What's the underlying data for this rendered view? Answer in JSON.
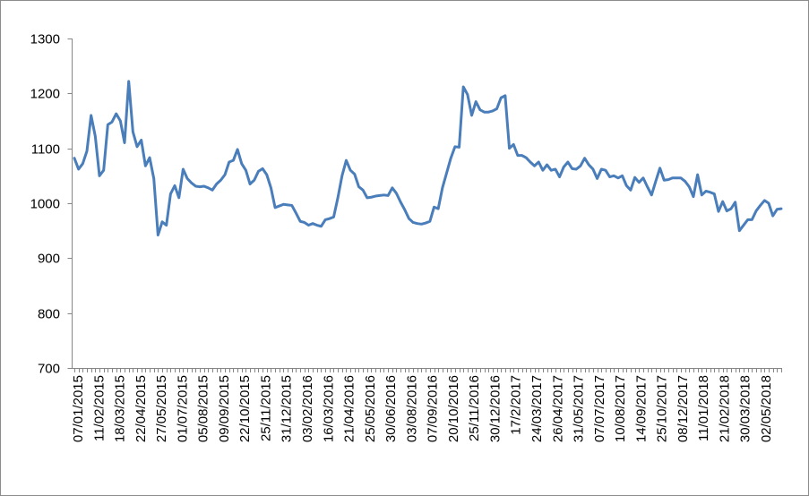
{
  "chart_data": {
    "type": "line",
    "title": "",
    "xlabel": "",
    "ylabel": "",
    "ylim": [
      700,
      1300
    ],
    "y_ticks": [
      700,
      800,
      900,
      1000,
      1100,
      1200,
      1300
    ],
    "x_tick_labels": [
      "07/01/2015",
      "11/02/2015",
      "18/03/2015",
      "22/04/2015",
      "27/05/2015",
      "01/07/2015",
      "05/08/2015",
      "09/09/2015",
      "22/10/2015",
      "25/11/2015",
      "31/12/2015",
      "03/02/2016",
      "16/03/2016",
      "21/04/2016",
      "25/05/2016",
      "30/06/2016",
      "03/08/2016",
      "07/09/2016",
      "20/10/2016",
      "25/11/2016",
      "30/12/2016",
      "17/2/2017",
      "24/03/2017",
      "26/04/2017",
      "31/05/2017",
      "07/07/2017",
      "10/08/2017",
      "14/09/2017",
      "25/10/2017",
      "08/12/2017",
      "11/01/2018",
      "21/02/2018",
      "30/03/2018",
      "02/05/2018"
    ],
    "grid": false,
    "legend": "none",
    "line_color": "#4a7ebb",
    "series": [
      {
        "values": [
          1082,
          1062,
          1072,
          1095,
          1160,
          1122,
          1050,
          1060,
          1143,
          1148,
          1163,
          1150,
          1110,
          1222,
          1130,
          1103,
          1115,
          1068,
          1083,
          1045,
          942,
          966,
          960,
          1017,
          1032,
          1010,
          1062,
          1045,
          1037,
          1031,
          1030,
          1031,
          1028,
          1024,
          1035,
          1042,
          1052,
          1075,
          1078,
          1098,
          1072,
          1060,
          1035,
          1042,
          1058,
          1063,
          1052,
          1028,
          992,
          995,
          998,
          997,
          996,
          982,
          967,
          965,
          960,
          963,
          960,
          958,
          970,
          972,
          975,
          1010,
          1050,
          1078,
          1060,
          1053,
          1030,
          1024,
          1010,
          1011,
          1013,
          1014,
          1015,
          1014,
          1028,
          1018,
          1002,
          988,
          972,
          965,
          963,
          962,
          964,
          967,
          993,
          990,
          1028,
          1055,
          1082,
          1103,
          1102,
          1212,
          1198,
          1160,
          1185,
          1170,
          1166,
          1166,
          1168,
          1172,
          1192,
          1196,
          1100,
          1107,
          1087,
          1087,
          1083,
          1075,
          1068,
          1075,
          1060,
          1070,
          1060,
          1062,
          1048,
          1066,
          1075,
          1063,
          1062,
          1068,
          1082,
          1070,
          1062,
          1045,
          1062,
          1060,
          1048,
          1050,
          1046,
          1050,
          1032,
          1024,
          1047,
          1038,
          1046,
          1030,
          1015,
          1040,
          1064,
          1042,
          1043,
          1046,
          1046,
          1046,
          1040,
          1030,
          1012,
          1052,
          1015,
          1022,
          1020,
          1017,
          985,
          1003,
          986,
          990,
          1002,
          950,
          960,
          970,
          970,
          986,
          996,
          1005,
          1000,
          977,
          989,
          990
        ]
      }
    ]
  }
}
